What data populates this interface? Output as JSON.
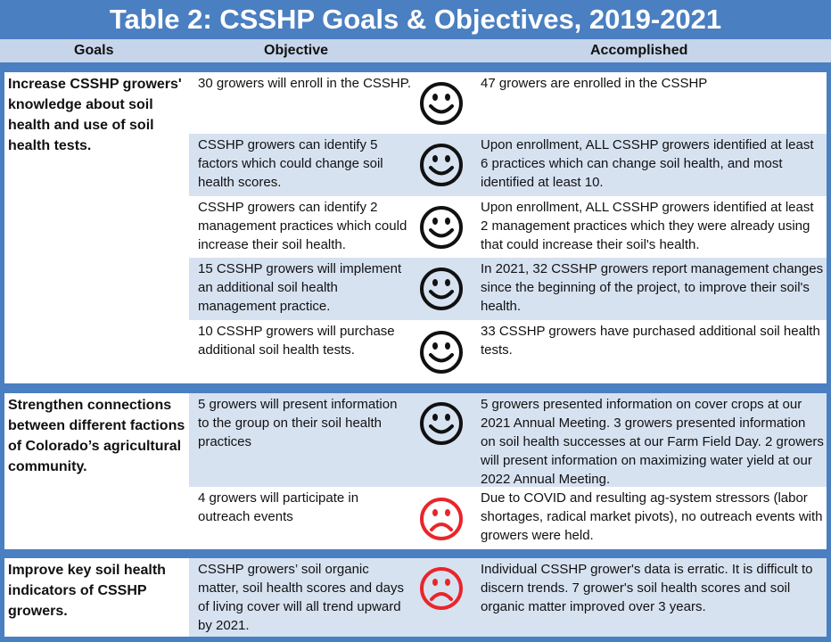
{
  "title": "Table 2: CSSHP Goals & Objectives, 2019-2021",
  "columns": {
    "goals": "Goals",
    "objective": "Objective",
    "accomplished": "Accomplished"
  },
  "icons": {
    "happy": "smiley-face-icon",
    "sad": "frowning-face-icon"
  },
  "colors": {
    "happy": "#111111",
    "sad": "#e8262a",
    "band": "#4a7fc1",
    "shade": "#d7e2f1"
  },
  "sections": [
    {
      "goal": "Increase CSSHP growers' knowledge about soil health and use of soil health tests.",
      "rows": [
        {
          "objective": "30 growers will enroll in the CSSHP.",
          "status": "happy",
          "accomplished": "47 growers are enrolled in the CSSHP"
        },
        {
          "objective": "CSSHP growers can identify 5 factors which could change soil health scores.",
          "status": "happy",
          "accomplished": "Upon enrollment, ALL CSSHP growers identified at least 6 practices which can change soil health, and most identified at least 10."
        },
        {
          "objective": "CSSHP growers can identify 2 management practices which could increase their soil health.",
          "status": "happy",
          "accomplished": "Upon enrollment, ALL CSSHP growers identified at least 2 management practices which they were already using that could increase their soil's health."
        },
        {
          "objective": "15 CSSHP growers will implement an additional soil health management practice.",
          "status": "happy",
          "accomplished": "In 2021, 32 CSSHP growers report management changes since the beginning of the project, to improve their soil's health."
        },
        {
          "objective": "10 CSSHP growers will purchase additional soil health tests.",
          "status": "happy",
          "accomplished": "33 CSSHP growers have purchased additional soil health tests."
        }
      ]
    },
    {
      "goal": "Strengthen connections between different factions of Colorado’s agricultural community.",
      "rows": [
        {
          "objective": "5 growers will present information to the group on their soil health practices",
          "status": "happy",
          "accomplished": "5 growers presented information on cover crops at our 2021 Annual Meeting.  3 growers presented information on soil health successes at our Farm Field Day.  2 growers will present information on maximizing water yield at our 2022 Annual Meeting."
        },
        {
          "objective": "4 growers will participate in outreach events",
          "status": "sad",
          "accomplished": "Due to COVID and resulting ag-system stressors (labor shortages, radical market pivots), no outreach events with growers were held."
        }
      ]
    },
    {
      "goal": "Improve key soil health indicators of CSSHP growers.",
      "rows": [
        {
          "objective": "CSSHP growers’ soil organic matter, soil health scores and days of living cover will all trend upward by 2021.",
          "status": "sad",
          "accomplished": "Individual CSSHP grower's data is erratic.  It is difficult to discern trends.  7 grower's soil health scores and soil organic matter improved over 3 years."
        }
      ]
    }
  ]
}
